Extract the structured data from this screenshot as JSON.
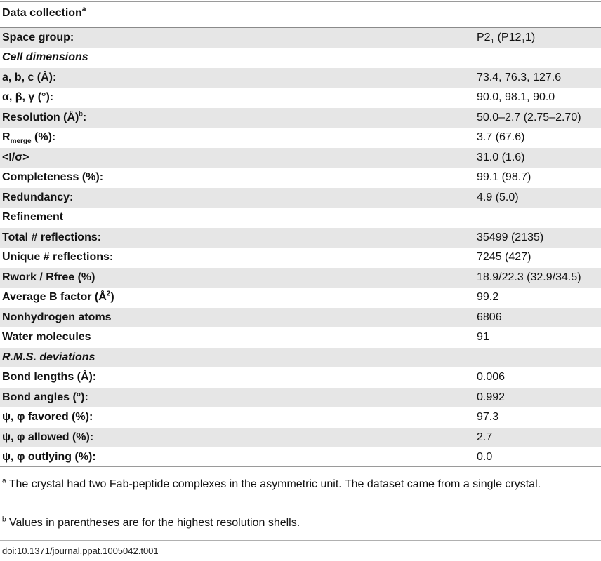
{
  "header": {
    "title": "Data collection",
    "title_sup": "a"
  },
  "rows": [
    {
      "label": "Space group:",
      "value_main": "P2",
      "value_sub": "1",
      "value_rest1": " (P12",
      "value_sub2": "1",
      "value_rest2": "1)"
    },
    {
      "label": "Cell dimensions",
      "value": ""
    },
    {
      "label": "a, b, c (Å):",
      "value": "73.4, 76.3, 127.6"
    },
    {
      "label": "α, β, γ (°):",
      "value": "90.0, 98.1, 90.0"
    },
    {
      "label_main": "Resolution (Å)",
      "label_sup": "b",
      "label_tail": ":",
      "value": "50.0–2.7 (2.75–2.70)"
    },
    {
      "label_main": "R",
      "label_sub": "merge",
      "label_tail": " (%):",
      "value": "3.7 (67.6)"
    },
    {
      "label": "<I/σ>",
      "value": "31.0 (1.6)"
    },
    {
      "label": "Completeness (%):",
      "value": "99.1 (98.7)"
    },
    {
      "label": "Redundancy:",
      "value": "4.9 (5.0)"
    },
    {
      "label": "Refinement",
      "value": ""
    },
    {
      "label": "Total # reflections:",
      "value": "35499 (2135)"
    },
    {
      "label": "Unique # reflections:",
      "value": "7245 (427)"
    },
    {
      "label": "Rwork / Rfree (%)",
      "value": "18.9/22.3 (32.9/34.5)"
    },
    {
      "label_main": "Average B factor (Å",
      "label_sup": "2",
      "label_tail": ")",
      "value": "99.2"
    },
    {
      "label": "Nonhydrogen atoms",
      "value": "6806"
    },
    {
      "label": "Water molecules",
      "value": "91"
    },
    {
      "label": "R.M.S. deviations",
      "value": ""
    },
    {
      "label": "Bond lengths (Å):",
      "value": "0.006"
    },
    {
      "label": "Bond angles (°):",
      "value": "0.992"
    },
    {
      "label": "ψ, φ favored (%):",
      "value": "97.3"
    },
    {
      "label": "ψ, φ allowed (%):",
      "value": "2.7"
    },
    {
      "label": "ψ, φ outlying (%):",
      "value": "0.0"
    }
  ],
  "footnotes": {
    "a_mark": "a",
    "a_text": " The crystal had two Fab-peptide complexes in the asymmetric unit. The dataset came from a single crystal.",
    "b_mark": "b",
    "b_text": " Values in parentheses are for the highest resolution shells."
  },
  "doi": "doi:10.1371/journal.ppat.1005042.t001"
}
